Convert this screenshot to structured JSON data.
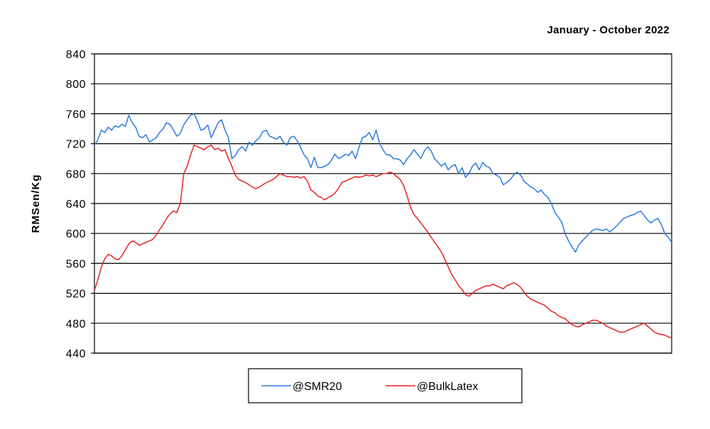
{
  "chart_data": {
    "type": "line",
    "title": "January - October 2022",
    "xlabel": "",
    "ylabel": "RMSen/Kg",
    "ylim": [
      440,
      840
    ],
    "yticks": [
      440,
      480,
      520,
      560,
      600,
      640,
      680,
      720,
      760,
      800,
      840
    ],
    "grid": true,
    "legend_position": "bottom-center",
    "series": [
      {
        "name": "@SMR20",
        "color": "#2a7be0",
        "values": [
          718,
          725,
          738,
          735,
          742,
          738,
          744,
          742,
          746,
          743,
          758,
          748,
          742,
          730,
          728,
          732,
          722,
          725,
          728,
          735,
          740,
          748,
          746,
          738,
          730,
          734,
          745,
          752,
          758,
          760,
          750,
          738,
          740,
          745,
          728,
          738,
          748,
          752,
          738,
          728,
          700,
          704,
          712,
          716,
          710,
          722,
          718,
          724,
          728,
          736,
          738,
          730,
          728,
          726,
          730,
          722,
          718,
          728,
          730,
          724,
          715,
          705,
          700,
          688,
          702,
          688,
          688,
          690,
          692,
          698,
          706,
          700,
          702,
          706,
          704,
          710,
          700,
          715,
          728,
          730,
          735,
          725,
          738,
          720,
          712,
          705,
          705,
          700,
          700,
          698,
          692,
          700,
          705,
          712,
          706,
          700,
          710,
          716,
          710,
          700,
          695,
          690,
          694,
          685,
          690,
          692,
          680,
          688,
          675,
          680,
          690,
          694,
          685,
          695,
          690,
          688,
          680,
          678,
          675,
          665,
          668,
          672,
          678,
          682,
          678,
          670,
          666,
          662,
          660,
          655,
          658,
          652,
          648,
          640,
          628,
          622,
          615,
          600,
          590,
          582,
          575,
          585,
          590,
          595,
          600,
          604,
          606,
          605,
          604,
          606,
          602,
          606,
          610,
          615,
          620,
          622,
          624,
          625,
          628,
          630,
          624,
          618,
          614,
          618,
          620,
          612,
          600,
          595,
          588
        ]
      },
      {
        "name": "@BulkLatex",
        "color": "#e52222",
        "values": [
          524,
          538,
          555,
          566,
          572,
          570,
          566,
          565,
          570,
          578,
          586,
          590,
          588,
          584,
          586,
          588,
          590,
          592,
          598,
          605,
          612,
          620,
          626,
          630,
          628,
          640,
          680,
          690,
          705,
          718,
          716,
          714,
          712,
          716,
          718,
          712,
          714,
          710,
          712,
          700,
          690,
          678,
          672,
          670,
          668,
          665,
          662,
          660,
          662,
          665,
          668,
          670,
          672,
          676,
          680,
          678,
          676,
          676,
          675,
          676,
          674,
          676,
          670,
          658,
          655,
          650,
          648,
          645,
          648,
          650,
          654,
          660,
          668,
          670,
          672,
          674,
          676,
          675,
          676,
          678,
          677,
          678,
          676,
          678,
          680,
          680,
          682,
          680,
          676,
          672,
          664,
          650,
          635,
          625,
          620,
          614,
          608,
          602,
          595,
          588,
          582,
          575,
          565,
          555,
          545,
          538,
          530,
          525,
          518,
          516,
          520,
          524,
          526,
          528,
          530,
          530,
          532,
          530,
          528,
          526,
          530,
          532,
          534,
          532,
          528,
          522,
          516,
          512,
          510,
          508,
          506,
          504,
          500,
          496,
          494,
          490,
          488,
          486,
          482,
          478,
          476,
          475,
          478,
          480,
          482,
          484,
          484,
          482,
          480,
          476,
          474,
          472,
          470,
          468,
          468,
          470,
          472,
          474,
          476,
          478,
          480,
          476,
          472,
          468,
          466,
          465,
          464,
          462,
          460
        ]
      }
    ]
  }
}
